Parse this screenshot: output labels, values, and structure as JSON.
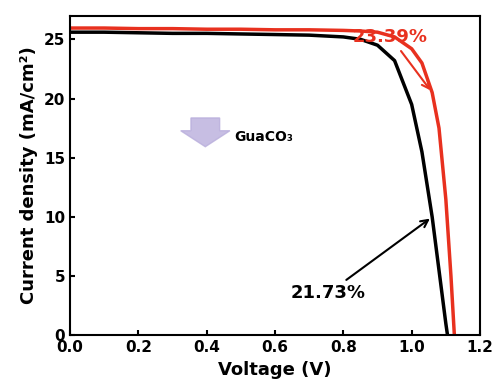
{
  "chart_data": {
    "type": "line",
    "x_label": "Voltage (V)",
    "y_label": "Current density (mA/cm²)",
    "annotation": "GuaCO₃",
    "xlim": [
      0.0,
      1.2
    ],
    "xticks": [
      0.0,
      0.2,
      0.4,
      0.6,
      0.8,
      1.0,
      1.2
    ],
    "ylim": [
      0,
      27
    ],
    "yticks": [
      0,
      5,
      10,
      15,
      20,
      25
    ],
    "grid": false,
    "series": [
      {
        "name": "21.73%",
        "color": "#000000",
        "line_style": "solid",
        "x": [
          0.0,
          0.1,
          0.2,
          0.3,
          0.4,
          0.5,
          0.6,
          0.7,
          0.8,
          0.85,
          0.9,
          0.95,
          1.0,
          1.03,
          1.06,
          1.08,
          1.1,
          1.105
        ],
        "values": [
          25.6,
          25.6,
          25.55,
          25.5,
          25.5,
          25.45,
          25.4,
          25.35,
          25.2,
          25.0,
          24.5,
          23.2,
          19.5,
          15.5,
          10.0,
          5.5,
          1.0,
          0
        ]
      },
      {
        "name": "23.39%",
        "color": "#e8311f",
        "line_style": "solid",
        "x": [
          0.0,
          0.1,
          0.2,
          0.3,
          0.4,
          0.5,
          0.6,
          0.7,
          0.8,
          0.85,
          0.9,
          0.95,
          1.0,
          1.03,
          1.06,
          1.08,
          1.1,
          1.115,
          1.125
        ],
        "values": [
          25.95,
          25.95,
          25.9,
          25.9,
          25.85,
          25.85,
          25.8,
          25.8,
          25.75,
          25.7,
          25.6,
          25.2,
          24.2,
          23.0,
          20.5,
          17.5,
          11.5,
          5.0,
          0
        ]
      }
    ]
  }
}
